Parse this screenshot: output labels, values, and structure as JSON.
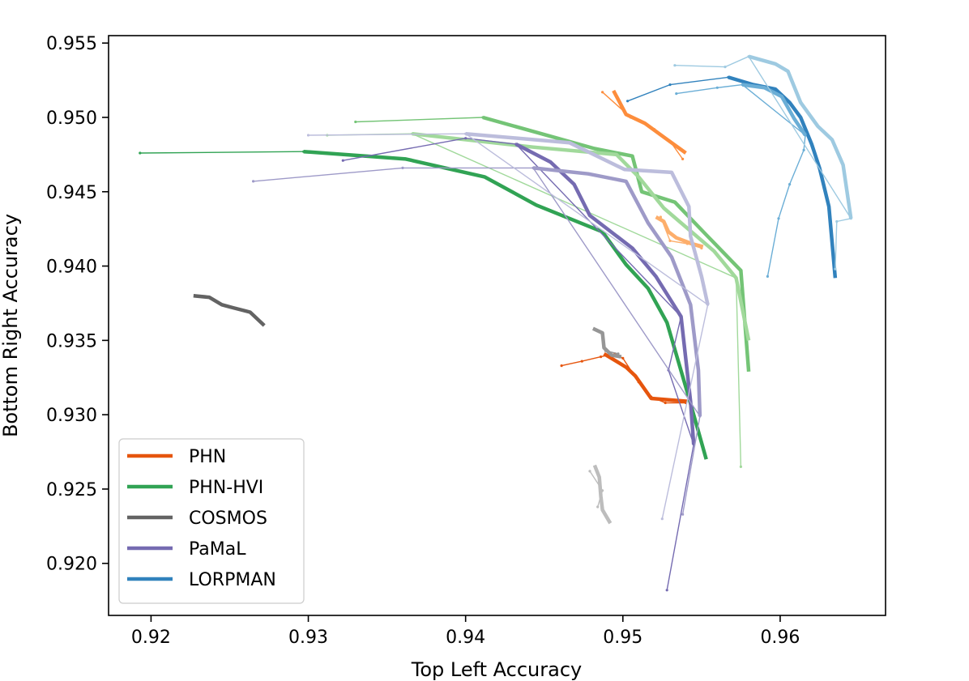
{
  "chart_data": {
    "type": "line",
    "title": "",
    "xlabel": "Top Left Accuracy",
    "ylabel": "Bottom Right Accuracy",
    "xlim": [
      0.9173,
      0.9667
    ],
    "ylim": [
      0.9165,
      0.9555
    ],
    "grid": false,
    "legend_location": "lower-left",
    "xticks": [
      0.92,
      0.93,
      0.94,
      0.95,
      0.96
    ],
    "xtick_labels": [
      "0.92",
      "0.93",
      "0.94",
      "0.95",
      "0.96"
    ],
    "yticks": [
      0.92,
      0.925,
      0.93,
      0.935,
      0.94,
      0.945,
      0.95,
      0.955
    ],
    "ytick_labels": [
      "0.920",
      "0.925",
      "0.930",
      "0.935",
      "0.940",
      "0.945",
      "0.950",
      "0.955"
    ],
    "legend": [
      {
        "name": "PHN",
        "color": "#e6550d"
      },
      {
        "name": "PHN-HVI",
        "color": "#31a354"
      },
      {
        "name": "COSMOS",
        "color": "#636363"
      },
      {
        "name": "PaMaL",
        "color": "#756bb1"
      },
      {
        "name": "LORPMAN",
        "color": "#3182bd"
      }
    ],
    "series": [
      {
        "name": "PHN",
        "color": "#e6550d",
        "front": [
          [
            0.9488,
            0.9341
          ],
          [
            0.9502,
            0.9332
          ],
          [
            0.9508,
            0.9326
          ],
          [
            0.9518,
            0.9311
          ],
          [
            0.9529,
            0.931
          ],
          [
            0.9541,
            0.9309
          ]
        ],
        "tail": [
          [
            0.9461,
            0.9333
          ],
          [
            0.9474,
            0.9336
          ],
          [
            0.9486,
            0.9339
          ],
          [
            0.9495,
            0.9341
          ],
          [
            0.95,
            0.9338
          ],
          [
            0.951,
            0.9322
          ],
          [
            0.9518,
            0.9312
          ],
          [
            0.9527,
            0.9308
          ],
          [
            0.954,
            0.9308
          ]
        ]
      },
      {
        "name": "PHN",
        "color": "#fd8d3c",
        "front": [
          [
            0.9494,
            0.9518
          ],
          [
            0.9502,
            0.9502
          ],
          [
            0.9514,
            0.9496
          ],
          [
            0.9527,
            0.9486
          ],
          [
            0.954,
            0.9476
          ]
        ],
        "tail": [
          [
            0.9487,
            0.9517
          ],
          [
            0.9505,
            0.95
          ],
          [
            0.952,
            0.9492
          ],
          [
            0.953,
            0.9484
          ],
          [
            0.9538,
            0.9472
          ]
        ]
      },
      {
        "name": "PHN",
        "color": "#fdae6b",
        "front": [
          [
            0.9521,
            0.9433
          ],
          [
            0.9526,
            0.943
          ],
          [
            0.9529,
            0.9423
          ],
          [
            0.9534,
            0.9419
          ],
          [
            0.9544,
            0.9415
          ],
          [
            0.9551,
            0.9413
          ]
        ],
        "tail": [
          [
            0.9524,
            0.9433
          ],
          [
            0.953,
            0.9417
          ],
          [
            0.9541,
            0.9415
          ],
          [
            0.955,
            0.9412
          ]
        ]
      },
      {
        "name": "PHN-HVI",
        "color": "#31a354",
        "front": [
          [
            0.9297,
            0.9477
          ],
          [
            0.9362,
            0.9472
          ],
          [
            0.9412,
            0.946
          ],
          [
            0.9445,
            0.9441
          ],
          [
            0.9487,
            0.9423
          ],
          [
            0.9502,
            0.9401
          ],
          [
            0.9516,
            0.9385
          ],
          [
            0.9528,
            0.9362
          ],
          [
            0.9541,
            0.9315
          ],
          [
            0.9553,
            0.927
          ]
        ],
        "tail": [
          [
            0.9193,
            0.9476
          ],
          [
            0.9297,
            0.9477
          ]
        ]
      },
      {
        "name": "PHN-HVI",
        "color": "#74c476",
        "front": [
          [
            0.9411,
            0.95
          ],
          [
            0.9482,
            0.9479
          ],
          [
            0.9506,
            0.9474
          ],
          [
            0.9512,
            0.945
          ],
          [
            0.9533,
            0.9443
          ],
          [
            0.9553,
            0.9421
          ],
          [
            0.9575,
            0.9397
          ],
          [
            0.958,
            0.9329
          ]
        ],
        "tail": [
          [
            0.933,
            0.9497
          ],
          [
            0.9411,
            0.95
          ]
        ]
      },
      {
        "name": "PHN-HVI",
        "color": "#a1d99b",
        "front": [
          [
            0.9366,
            0.9489
          ],
          [
            0.9443,
            0.948
          ],
          [
            0.9496,
            0.9475
          ],
          [
            0.951,
            0.946
          ],
          [
            0.9526,
            0.9439
          ],
          [
            0.9558,
            0.941
          ],
          [
            0.9572,
            0.9392
          ],
          [
            0.958,
            0.935
          ]
        ],
        "tail": [
          [
            0.9312,
            0.9488
          ],
          [
            0.9366,
            0.9489
          ],
          [
            0.9572,
            0.9392
          ],
          [
            0.9575,
            0.9265
          ]
        ]
      },
      {
        "name": "COSMOS",
        "color": "#636363",
        "front": [
          [
            0.9227,
            0.938
          ],
          [
            0.9237,
            0.9379
          ],
          [
            0.9245,
            0.9374
          ],
          [
            0.9252,
            0.9372
          ],
          [
            0.9263,
            0.9369
          ],
          [
            0.9272,
            0.936
          ]
        ],
        "tail": []
      },
      {
        "name": "COSMOS",
        "color": "#969696",
        "front": [
          [
            0.9481,
            0.9358
          ],
          [
            0.9487,
            0.9355
          ],
          [
            0.9488,
            0.9345
          ],
          [
            0.9493,
            0.934
          ],
          [
            0.9499,
            0.9339
          ]
        ],
        "tail": [
          [
            0.9489,
            0.9343
          ],
          [
            0.9497,
            0.9341
          ]
        ]
      },
      {
        "name": "COSMOS",
        "color": "#bdbdbd",
        "front": [
          [
            0.9482,
            0.9266
          ],
          [
            0.9485,
            0.9258
          ],
          [
            0.9486,
            0.9245
          ],
          [
            0.9487,
            0.9236
          ],
          [
            0.9492,
            0.9227
          ]
        ],
        "tail": [
          [
            0.9479,
            0.9262
          ],
          [
            0.9487,
            0.9249
          ],
          [
            0.9484,
            0.9238
          ]
        ]
      },
      {
        "name": "PaMaL",
        "color": "#756bb1",
        "front": [
          [
            0.9432,
            0.9482
          ],
          [
            0.9454,
            0.947
          ],
          [
            0.9469,
            0.9455
          ],
          [
            0.9479,
            0.9434
          ],
          [
            0.9506,
            0.9412
          ],
          [
            0.9521,
            0.9393
          ],
          [
            0.9537,
            0.9366
          ],
          [
            0.9543,
            0.9309
          ],
          [
            0.9545,
            0.928
          ]
        ],
        "tail": [
          [
            0.9322,
            0.9471
          ],
          [
            0.94,
            0.9486
          ],
          [
            0.9432,
            0.9482
          ],
          [
            0.9537,
            0.9366
          ],
          [
            0.9529,
            0.933
          ],
          [
            0.9545,
            0.928
          ],
          [
            0.9528,
            0.9182
          ]
        ]
      },
      {
        "name": "PaMaL",
        "color": "#9e9ac8",
        "front": [
          [
            0.9443,
            0.9466
          ],
          [
            0.9478,
            0.9462
          ],
          [
            0.9502,
            0.9457
          ],
          [
            0.9516,
            0.9429
          ],
          [
            0.9531,
            0.9406
          ],
          [
            0.9543,
            0.9374
          ],
          [
            0.9548,
            0.933
          ],
          [
            0.9549,
            0.9299
          ]
        ],
        "tail": [
          [
            0.9265,
            0.9457
          ],
          [
            0.936,
            0.9466
          ],
          [
            0.9443,
            0.9466
          ],
          [
            0.9549,
            0.9299
          ],
          [
            0.9538,
            0.9233
          ]
        ]
      },
      {
        "name": "PaMaL",
        "color": "#bcbddc",
        "front": [
          [
            0.94,
            0.9489
          ],
          [
            0.9466,
            0.9483
          ],
          [
            0.9501,
            0.9465
          ],
          [
            0.9531,
            0.9463
          ],
          [
            0.9542,
            0.944
          ],
          [
            0.9543,
            0.942
          ],
          [
            0.955,
            0.9393
          ],
          [
            0.9554,
            0.9374
          ]
        ],
        "tail": [
          [
            0.93,
            0.9488
          ],
          [
            0.94,
            0.9489
          ],
          [
            0.9554,
            0.9374
          ],
          [
            0.9525,
            0.923
          ]
        ]
      },
      {
        "name": "LORPMAN",
        "color": "#3182bd",
        "front": [
          [
            0.9567,
            0.9527
          ],
          [
            0.9583,
            0.9522
          ],
          [
            0.9597,
            0.9519
          ],
          [
            0.9606,
            0.951
          ],
          [
            0.9613,
            0.95
          ],
          [
            0.962,
            0.9482
          ],
          [
            0.9625,
            0.9466
          ],
          [
            0.9631,
            0.944
          ],
          [
            0.9635,
            0.9392
          ]
        ],
        "tail": [
          [
            0.9503,
            0.9511
          ],
          [
            0.953,
            0.9522
          ],
          [
            0.9567,
            0.9527
          ]
        ]
      },
      {
        "name": "LORPMAN",
        "color": "#6baed6",
        "front": [
          [
            0.9576,
            0.9522
          ],
          [
            0.959,
            0.952
          ],
          [
            0.9601,
            0.9514
          ],
          [
            0.9609,
            0.9499
          ],
          [
            0.9616,
            0.9488
          ]
        ],
        "tail": [
          [
            0.9534,
            0.9516
          ],
          [
            0.956,
            0.952
          ],
          [
            0.9576,
            0.9522
          ],
          [
            0.9616,
            0.9488
          ],
          [
            0.9615,
            0.9478
          ],
          [
            0.9606,
            0.9455
          ],
          [
            0.9599,
            0.9432
          ],
          [
            0.9592,
            0.9393
          ]
        ]
      },
      {
        "name": "LORPMAN",
        "color": "#9ecae1",
        "front": [
          [
            0.958,
            0.9541
          ],
          [
            0.9597,
            0.9536
          ],
          [
            0.9605,
            0.9531
          ],
          [
            0.9613,
            0.951
          ],
          [
            0.9624,
            0.9494
          ],
          [
            0.9633,
            0.9485
          ],
          [
            0.964,
            0.9468
          ],
          [
            0.9645,
            0.9432
          ]
        ],
        "tail": [
          [
            0.9533,
            0.9535
          ],
          [
            0.9565,
            0.9534
          ],
          [
            0.958,
            0.9541
          ],
          [
            0.9645,
            0.9432
          ],
          [
            0.9636,
            0.943
          ],
          [
            0.9635,
            0.9398
          ]
        ]
      }
    ]
  }
}
